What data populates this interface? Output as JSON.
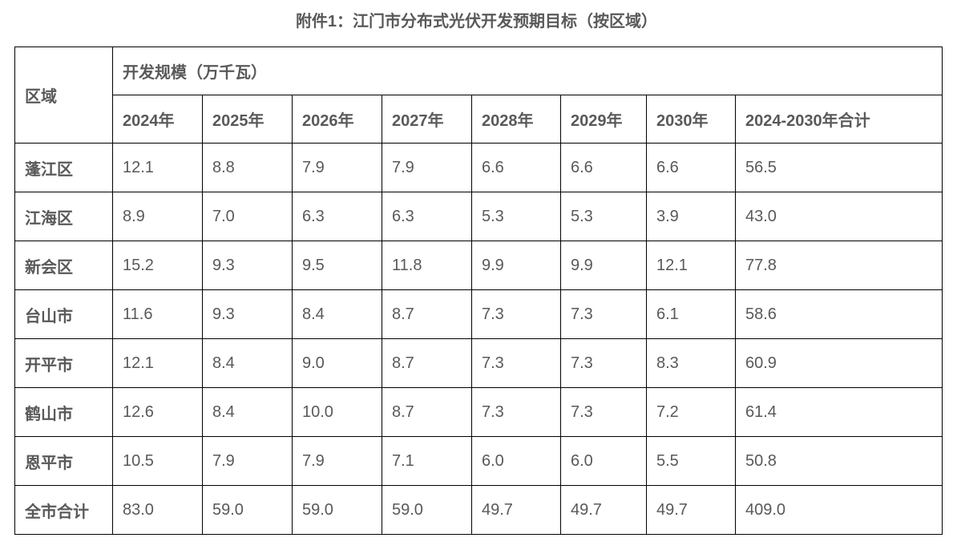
{
  "page": {
    "title": "附件1：江门市分布式光伏开发预期目标（按区域）"
  },
  "table": {
    "region_header": "区域",
    "group_header": "开发规模（万千瓦）",
    "year_headers": [
      "2024年",
      "2025年",
      "2026年",
      "2027年",
      "2028年",
      "2029年",
      "2030年",
      "2024-2030年合计"
    ],
    "rows": [
      {
        "region": "蓬江区",
        "values": [
          "12.1",
          "8.8",
          "7.9",
          "7.9",
          "6.6",
          "6.6",
          "6.6",
          "56.5"
        ]
      },
      {
        "region": "江海区",
        "values": [
          "8.9",
          "7.0",
          "6.3",
          "6.3",
          "5.3",
          "5.3",
          "3.9",
          "43.0"
        ]
      },
      {
        "region": "新会区",
        "values": [
          "15.2",
          "9.3",
          "9.5",
          "11.8",
          "9.9",
          "9.9",
          "12.1",
          "77.8"
        ]
      },
      {
        "region": "台山市",
        "values": [
          "11.6",
          "9.3",
          "8.4",
          "8.7",
          "7.3",
          "7.3",
          "6.1",
          "58.6"
        ]
      },
      {
        "region": "开平市",
        "values": [
          "12.1",
          "8.4",
          "9.0",
          "8.7",
          "7.3",
          "7.3",
          "8.3",
          "60.9"
        ]
      },
      {
        "region": "鹤山市",
        "values": [
          "12.6",
          "8.4",
          "10.0",
          "8.7",
          "7.3",
          "7.3",
          "7.2",
          "61.4"
        ]
      },
      {
        "region": "恩平市",
        "values": [
          "10.5",
          "7.9",
          "7.9",
          "7.1",
          "6.0",
          "6.0",
          "5.5",
          "50.8"
        ]
      },
      {
        "region": "全市合计",
        "values": [
          "83.0",
          "59.0",
          "59.0",
          "59.0",
          "49.7",
          "49.7",
          "49.7",
          "409.0"
        ]
      }
    ]
  },
  "colors": {
    "text": "#595959",
    "border": "#000000",
    "background": "#ffffff"
  }
}
